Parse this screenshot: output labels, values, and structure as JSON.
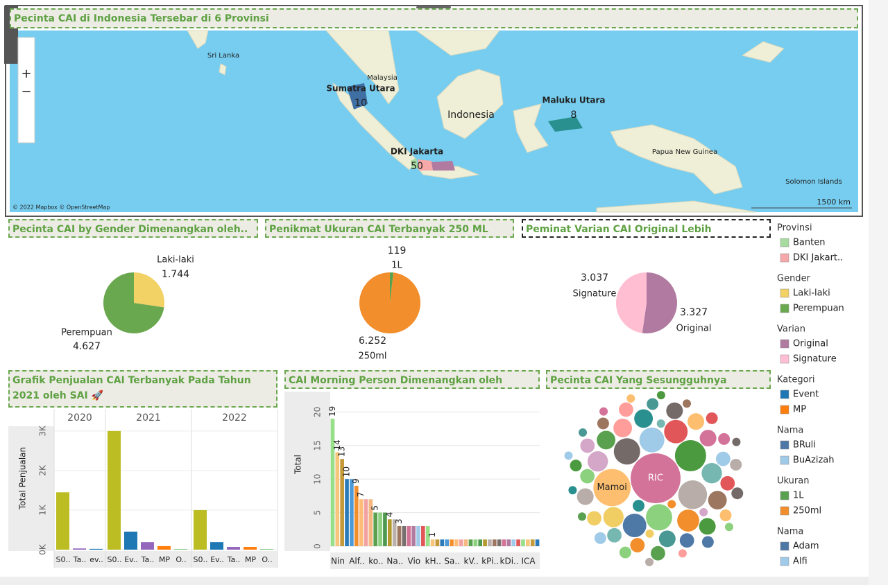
{
  "legends": [
    {
      "title": "Provinsi",
      "items": [
        {
          "label": "Banten",
          "color": "#a8dba0"
        },
        {
          "label": "DKI Jakart..",
          "color": "#f7a8a8"
        }
      ]
    },
    {
      "title": "Gender",
      "items": [
        {
          "label": "Laki-laki",
          "color": "#f2d165"
        },
        {
          "label": "Perempuan",
          "color": "#6aa84f"
        }
      ]
    },
    {
      "title": "Varian",
      "items": [
        {
          "label": "Original",
          "color": "#b07aa1"
        },
        {
          "label": "Signature",
          "color": "#ffbed2"
        }
      ]
    },
    {
      "title": "Kategori",
      "items": [
        {
          "label": "Event",
          "color": "#1f77b4"
        },
        {
          "label": "MP",
          "color": "#ff7f0e"
        }
      ]
    },
    {
      "title": "Nama",
      "items": [
        {
          "label": "BRuli",
          "color": "#4e79a7"
        },
        {
          "label": "BuAzizah",
          "color": "#a0cbe8"
        }
      ]
    },
    {
      "title": "Ukuran",
      "items": [
        {
          "label": "1L",
          "color": "#59a14f"
        },
        {
          "label": "250ml",
          "color": "#f28e2b"
        }
      ]
    },
    {
      "title": "Nama",
      "items": [
        {
          "label": "Adam",
          "color": "#4e79a7"
        },
        {
          "label": "Alfi",
          "color": "#a0cbe8"
        }
      ]
    }
  ],
  "chart_data": [
    {
      "type": "map",
      "title": "Pecinta CAI di Indonesia Tersebar di 6 Provinsi",
      "places": [
        "Sri Lanka",
        "Malaysia",
        "Indonesia",
        "Papua New Guinea",
        "Solomon Islands"
      ],
      "categories": [
        "Sumatra Utara",
        "Maluku Utara",
        "DKI Jakarta"
      ],
      "values": [
        10,
        8,
        50
      ],
      "attribution": "© 2022 Mapbox © OpenStreetMap",
      "scale_label": "1500 km"
    },
    {
      "type": "pie",
      "title": "Pecinta CAI by Gender Dimenangkan oleh..",
      "categories": [
        "Laki-laki",
        "Perempuan"
      ],
      "values": [
        1744,
        4627
      ],
      "value_labels": [
        "1.744",
        "4.627"
      ],
      "colors": [
        "#f2d165",
        "#6aa84f"
      ]
    },
    {
      "type": "pie",
      "title": "Penikmat Ukuran CAI Terbanyak 250 ML",
      "categories": [
        "1L",
        "250ml"
      ],
      "values": [
        119,
        6252
      ],
      "value_labels": [
        "119",
        "6.252"
      ],
      "colors": [
        "#59a14f",
        "#f28e2b"
      ]
    },
    {
      "type": "pie",
      "title": "Peminat Varian CAI Original Lebih Mendominasi",
      "categories": [
        "Original",
        "Signature"
      ],
      "values": [
        3327,
        3037
      ],
      "value_labels": [
        "3.327",
        "3.037"
      ],
      "colors": [
        "#b07aa1",
        "#ffbed2"
      ]
    },
    {
      "type": "facet_bar",
      "title": "Grafik Penjualan CAI Terbanyak Pada Tahun 2021 oleh SAI 🚀",
      "y_label": "Total Penjualan",
      "ylim": [
        0,
        3120
      ],
      "yticks": [
        {
          "value": 0,
          "label": "0K"
        },
        {
          "value": 1000,
          "label": "1K"
        },
        {
          "value": 2000,
          "label": "2K"
        },
        {
          "value": 3000,
          "label": "3K"
        }
      ],
      "panels": [
        {
          "name": "2020",
          "categories": [
            "S0..",
            "Ta..",
            "ev.."
          ],
          "values": [
            1450,
            30,
            20
          ],
          "colors": [
            "#bcbd22",
            "#9467bd",
            "#1f77b4"
          ]
        },
        {
          "name": "2021",
          "categories": [
            "S0..",
            "Ev..",
            "Ta..",
            "MP",
            "O.."
          ],
          "values": [
            3000,
            456,
            190,
            90,
            10
          ],
          "colors": [
            "#bcbd22",
            "#1f77b4",
            "#9467bd",
            "#ff7f0e",
            "#2ca02c"
          ]
        },
        {
          "name": "2022",
          "categories": [
            "S0..",
            "Ev..",
            "Ta..",
            "MP",
            "O.."
          ],
          "values": [
            1000,
            190,
            70,
            70,
            10
          ],
          "colors": [
            "#bcbd22",
            "#1f77b4",
            "#9467bd",
            "#ff7f0e",
            "#2ca02c"
          ]
        }
      ]
    },
    {
      "type": "bar",
      "title": "CAI Morning Person Dimenangkan oleh Nanda..",
      "y_label": "Total",
      "ylim": [
        0,
        22
      ],
      "yticks": [
        0,
        5,
        10,
        15,
        20
      ],
      "categories": [
        "Nin",
        null,
        null,
        null,
        "Alf..",
        null,
        null,
        null,
        "ko..",
        null,
        null,
        null,
        "Na..",
        null,
        null,
        null,
        "Vio",
        null,
        null,
        null,
        "kH..",
        null,
        null,
        null,
        "Sa..",
        null,
        null,
        null,
        "kV..",
        null,
        null,
        null,
        "kPi..",
        null,
        null,
        null,
        "kDi..",
        null,
        null,
        null,
        "ICA",
        null,
        null,
        null
      ],
      "values": [
        19,
        14,
        13,
        10,
        10,
        9,
        7,
        7,
        7,
        5,
        5,
        5,
        4,
        4,
        3,
        3,
        3,
        3,
        3,
        3,
        3,
        1,
        1,
        1,
        1,
        1,
        1,
        1,
        1,
        1,
        1,
        1,
        1,
        1,
        1,
        1,
        1,
        1,
        1,
        1,
        1,
        1,
        1,
        1
      ],
      "palette": [
        "#98df8a",
        "#f5c67c",
        "#c49a3a",
        "#2b7bba",
        "#4e9ad6",
        "#f28e2b",
        "#ffbb78",
        "#f2a2a2",
        "#f5b880",
        "#59a14f",
        "#8cd17d",
        "#4e9a4e",
        "#b6992d",
        "#bab0ac",
        "#9d7660",
        "#79706e",
        "#d37295",
        "#b07aa1",
        "#a0cbe8",
        "#e15759"
      ]
    },
    {
      "type": "bubble",
      "title": "Pecinta CAI Yang Sesungguhnya Adalah..",
      "categories": [
        "RIC",
        "Mamoi",
        null,
        null,
        null,
        null,
        null,
        null,
        null,
        null,
        null,
        null,
        null,
        null,
        null,
        null,
        null,
        null,
        null,
        null,
        null,
        null,
        null,
        null,
        null,
        null,
        null,
        null,
        null,
        null,
        null,
        null,
        null,
        null,
        null,
        null,
        null,
        null,
        null,
        null,
        null,
        null,
        null,
        null,
        null,
        null,
        null,
        null,
        null,
        null,
        null,
        null,
        null,
        null,
        null,
        null,
        null,
        null,
        null,
        null,
        null
      ],
      "values": [
        36,
        20,
        14,
        12,
        10,
        10,
        9,
        8,
        8,
        7,
        6,
        6,
        6,
        5,
        5,
        5,
        5,
        4,
        4,
        4,
        4,
        4,
        4,
        3,
        3,
        3,
        3,
        3,
        3,
        3,
        3,
        3,
        3,
        2,
        2,
        2,
        2,
        2,
        2,
        2,
        2,
        2,
        2,
        2,
        2,
        1,
        1,
        1,
        1,
        1,
        1,
        1,
        1,
        1,
        1,
        1,
        1,
        1,
        1,
        1,
        1
      ],
      "palette": [
        "#d4739a",
        "#fdbf6f",
        "#4c9a3f",
        "#b8ada8",
        "#746a68",
        "#8cd17d",
        "#a0cbe8",
        "#e15759",
        "#4e79a7",
        "#f28e2b",
        "#76b7b2",
        "#f1ce63",
        "#d4a6c8",
        "#ff9d9a",
        "#59a14f",
        "#2a8f8f",
        "#9d7660",
        "#499894"
      ]
    }
  ]
}
